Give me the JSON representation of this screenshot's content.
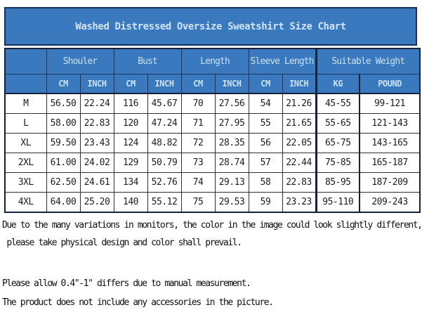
{
  "title": "Washed Distressed Oversize Sweatshirt Size Chart",
  "colors": {
    "header_blue": "#3a79bd",
    "header_text": "#cfe4f7",
    "header_border_navy": "#1a3560",
    "table_border_dark": "#14213a",
    "cell_border": "#2e2e2e",
    "cell_text": "#1d1d1d",
    "page_background": "#ffffff"
  },
  "table": {
    "groups": [
      {
        "label": ""
      },
      {
        "label": "Shouler"
      },
      {
        "label": "Bust"
      },
      {
        "label": "Length"
      },
      {
        "label": "Sleeve Length"
      },
      {
        "label": "Suitable Weight"
      }
    ],
    "units": [
      "CM",
      "INCH",
      "CM",
      "INCH",
      "CM",
      "INCH",
      "CM",
      "INCH",
      "KG",
      "POUND"
    ],
    "rows": [
      {
        "size": "M",
        "cells": [
          "56.50",
          "22.24",
          "116",
          "45.67",
          "70",
          "27.56",
          "54",
          "21.26",
          "45-55",
          "99-121"
        ]
      },
      {
        "size": "L",
        "cells": [
          "58.00",
          "22.83",
          "120",
          "47.24",
          "71",
          "27.95",
          "55",
          "21.65",
          "55-65",
          "121-143"
        ]
      },
      {
        "size": "XL",
        "cells": [
          "59.50",
          "23.43",
          "124",
          "48.82",
          "72",
          "28.35",
          "56",
          "22.05",
          "65-75",
          "143-165"
        ]
      },
      {
        "size": "2XL",
        "cells": [
          "61.00",
          "24.02",
          "129",
          "50.79",
          "73",
          "28.74",
          "57",
          "22.44",
          "75-85",
          "165-187"
        ]
      },
      {
        "size": "3XL",
        "cells": [
          "62.50",
          "24.61",
          "134",
          "52.76",
          "74",
          "29.13",
          "58",
          "22.83",
          "85-95",
          "187-209"
        ]
      },
      {
        "size": "4XL",
        "cells": [
          "64.00",
          "25.20",
          "140",
          "55.12",
          "75",
          "29.53",
          "59",
          "23.23",
          "95-110",
          "209-243"
        ]
      }
    ]
  },
  "notes": [
    "Due to the many variations in monitors, the color in the image could look slightly different,",
    " please take physical design and color shall prevail.",
    "Please allow 0.4\"-1\" differs due to manual measurement.",
    "The product does not include any accessories in the picture."
  ]
}
